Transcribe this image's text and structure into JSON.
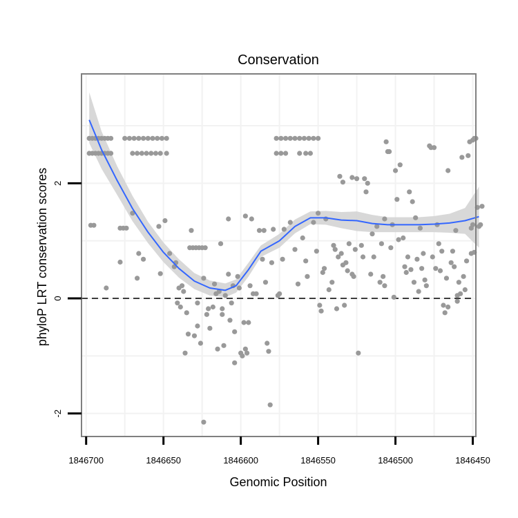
{
  "chart_data": {
    "type": "scatter",
    "title": "Conservation",
    "xlabel": "Genomic Position",
    "ylabel": "phyloP LRT conservation scores",
    "x_reversed": true,
    "xlim": [
      1846703,
      1846448
    ],
    "ylim": [
      -2.4,
      3.9
    ],
    "x_ticks": [
      1846700,
      1846650,
      1846600,
      1846550,
      1846500,
      1846450
    ],
    "x_tick_labels": [
      "1846700",
      "1846650",
      "1846600",
      "1846550",
      "1846500",
      "1846450"
    ],
    "y_ticks": [
      -2,
      0,
      2
    ],
    "y_tick_labels": [
      "-2",
      "0",
      "2"
    ],
    "reference_line": {
      "y": 0,
      "style": "dashed"
    },
    "grid": true,
    "colors": {
      "points": "#999999",
      "smooth_line": "#3366ff",
      "confidence_band": "#d4d4d4",
      "reference_line": "#000000",
      "panel_border": "#7f7f7f",
      "grid": "#f2f2f2"
    },
    "series": [
      {
        "name": "points",
        "points": [
          [
            1846698,
            2.78
          ],
          [
            1846696,
            2.78
          ],
          [
            1846694,
            2.78
          ],
          [
            1846692,
            2.78
          ],
          [
            1846690,
            2.78
          ],
          [
            1846688,
            2.78
          ],
          [
            1846686,
            2.78
          ],
          [
            1846684,
            2.78
          ],
          [
            1846698,
            2.52
          ],
          [
            1846696,
            2.52
          ],
          [
            1846694,
            2.52
          ],
          [
            1846692,
            2.52
          ],
          [
            1846690,
            2.52
          ],
          [
            1846688,
            2.52
          ],
          [
            1846686,
            2.52
          ],
          [
            1846684,
            2.52
          ],
          [
            1846675,
            2.78
          ],
          [
            1846672,
            2.78
          ],
          [
            1846669,
            2.78
          ],
          [
            1846666,
            2.78
          ],
          [
            1846663,
            2.78
          ],
          [
            1846660,
            2.78
          ],
          [
            1846657,
            2.78
          ],
          [
            1846654,
            2.78
          ],
          [
            1846651,
            2.78
          ],
          [
            1846648,
            2.78
          ],
          [
            1846670,
            2.52
          ],
          [
            1846667,
            2.52
          ],
          [
            1846664,
            2.52
          ],
          [
            1846661,
            2.52
          ],
          [
            1846658,
            2.52
          ],
          [
            1846655,
            2.52
          ],
          [
            1846652,
            2.52
          ],
          [
            1846648,
            2.52
          ],
          [
            1846577,
            2.78
          ],
          [
            1846574,
            2.78
          ],
          [
            1846571,
            2.78
          ],
          [
            1846568,
            2.78
          ],
          [
            1846565,
            2.78
          ],
          [
            1846562,
            2.78
          ],
          [
            1846559,
            2.78
          ],
          [
            1846556,
            2.78
          ],
          [
            1846553,
            2.78
          ],
          [
            1846550,
            2.78
          ],
          [
            1846577,
            2.52
          ],
          [
            1846574,
            2.52
          ],
          [
            1846571,
            2.52
          ],
          [
            1846562,
            2.52
          ],
          [
            1846558,
            2.52
          ],
          [
            1846555,
            2.52
          ],
          [
            1846697,
            1.27
          ],
          [
            1846695,
            1.27
          ],
          [
            1846687,
            0.18
          ],
          [
            1846678,
            1.22
          ],
          [
            1846676,
            1.22
          ],
          [
            1846674,
            1.22
          ],
          [
            1846678,
            0.63
          ],
          [
            1846670,
            1.48
          ],
          [
            1846667,
            0.35
          ],
          [
            1846666,
            0.78
          ],
          [
            1846663,
            0.68
          ],
          [
            1846653,
            1.25
          ],
          [
            1846652,
            0.43
          ],
          [
            1846649,
            1.35
          ],
          [
            1846646,
            0.78
          ],
          [
            1846643,
            0.55
          ],
          [
            1846642,
            0.62
          ],
          [
            1846640,
            0.18
          ],
          [
            1846641,
            -0.08
          ],
          [
            1846639,
            -0.15
          ],
          [
            1846638,
            0.22
          ],
          [
            1846637,
            0.12
          ],
          [
            1846635,
            -0.25
          ],
          [
            1846634,
            -0.62
          ],
          [
            1846636,
            -0.95
          ],
          [
            1846633,
            0.88
          ],
          [
            1846631,
            0.88
          ],
          [
            1846629,
            0.88
          ],
          [
            1846627,
            0.88
          ],
          [
            1846625,
            0.88
          ],
          [
            1846623,
            0.88
          ],
          [
            1846632,
            1.18
          ],
          [
            1846630,
            -0.65
          ],
          [
            1846628,
            -0.48
          ],
          [
            1846628,
            -0.08
          ],
          [
            1846626,
            -0.78
          ],
          [
            1846624,
            0.35
          ],
          [
            1846622,
            -0.28
          ],
          [
            1846621,
            -0.18
          ],
          [
            1846624,
            -2.15
          ],
          [
            1846620,
            -0.52
          ],
          [
            1846618,
            -0.15
          ],
          [
            1846617,
            0.25
          ],
          [
            1846616,
            0.08
          ],
          [
            1846615,
            -0.88
          ],
          [
            1846614,
            0.12
          ],
          [
            1846613,
            0.95
          ],
          [
            1846612,
            -0.18
          ],
          [
            1846612,
            -0.28
          ],
          [
            1846611,
            -0.82
          ],
          [
            1846610,
            0.05
          ],
          [
            1846608,
            0.42
          ],
          [
            1846608,
            1.38
          ],
          [
            1846607,
            -0.38
          ],
          [
            1846606,
            -0.08
          ],
          [
            1846605,
            0.22
          ],
          [
            1846604,
            -1.12
          ],
          [
            1846604,
            -0.58
          ],
          [
            1846602,
            0.38
          ],
          [
            1846601,
            0.18
          ],
          [
            1846600,
            -0.95
          ],
          [
            1846599,
            -1.0
          ],
          [
            1846598,
            -0.42
          ],
          [
            1846597,
            1.43
          ],
          [
            1846597,
            -0.88
          ],
          [
            1846596,
            -0.95
          ],
          [
            1846595,
            -0.42
          ],
          [
            1846594,
            0.22
          ],
          [
            1846593,
            1.38
          ],
          [
            1846592,
            0.08
          ],
          [
            1846590,
            0.08
          ],
          [
            1846588,
            1.18
          ],
          [
            1846586,
            0.68
          ],
          [
            1846585,
            1.18
          ],
          [
            1846584,
            0.28
          ],
          [
            1846583,
            -0.78
          ],
          [
            1846582,
            -0.92
          ],
          [
            1846581,
            -1.85
          ],
          [
            1846580,
            0.62
          ],
          [
            1846579,
            1.2
          ],
          [
            1846576,
            0.05
          ],
          [
            1846575,
            0.08
          ],
          [
            1846573,
            0.68
          ],
          [
            1846572,
            1.2
          ],
          [
            1846568,
            1.32
          ],
          [
            1846565,
            0.85
          ],
          [
            1846563,
            0.25
          ],
          [
            1846560,
            1.05
          ],
          [
            1846558,
            0.65
          ],
          [
            1846557,
            0.38
          ],
          [
            1846553,
            1.32
          ],
          [
            1846551,
            0.82
          ],
          [
            1846550,
            1.48
          ],
          [
            1846549,
            -0.12
          ],
          [
            1846548,
            -0.22
          ],
          [
            1846547,
            0.45
          ],
          [
            1846546,
            0.52
          ],
          [
            1846545,
            1.38
          ],
          [
            1846543,
            0.15
          ],
          [
            1846541,
            0.28
          ],
          [
            1846540,
            0.92
          ],
          [
            1846539,
            0.85
          ],
          [
            1846538,
            -0.18
          ],
          [
            1846537,
            0.72
          ],
          [
            1846536,
            2.12
          ],
          [
            1846535,
            0.78
          ],
          [
            1846534,
            0.58
          ],
          [
            1846534,
            2.02
          ],
          [
            1846533,
            -0.12
          ],
          [
            1846532,
            0.62
          ],
          [
            1846531,
            0.48
          ],
          [
            1846530,
            0.95
          ],
          [
            1846528,
            2.1
          ],
          [
            1846528,
            0.42
          ],
          [
            1846527,
            0.38
          ],
          [
            1846526,
            0.85
          ],
          [
            1846525,
            2.08
          ],
          [
            1846524,
            -0.95
          ],
          [
            1846522,
            0.92
          ],
          [
            1846521,
            0.72
          ],
          [
            1846520,
            2.08
          ],
          [
            1846519,
            1.85
          ],
          [
            1846518,
            2.0
          ],
          [
            1846516,
            0.42
          ],
          [
            1846515,
            1.12
          ],
          [
            1846514,
            0.72
          ],
          [
            1846512,
            1.25
          ],
          [
            1846510,
            0.28
          ],
          [
            1846509,
            0.95
          ],
          [
            1846508,
            0.38
          ],
          [
            1846507,
            0.22
          ],
          [
            1846507,
            1.38
          ],
          [
            1846506,
            2.72
          ],
          [
            1846505,
            2.55
          ],
          [
            1846504,
            2.55
          ],
          [
            1846503,
            0.88
          ],
          [
            1846502,
            1.28
          ],
          [
            1846501,
            0.02
          ],
          [
            1846500,
            2.22
          ],
          [
            1846499,
            1.72
          ],
          [
            1846498,
            1.02
          ],
          [
            1846497,
            2.32
          ],
          [
            1846495,
            1.05
          ],
          [
            1846494,
            0.55
          ],
          [
            1846493,
            0.45
          ],
          [
            1846492,
            0.72
          ],
          [
            1846491,
            1.85
          ],
          [
            1846490,
            0.5
          ],
          [
            1846489,
            1.68
          ],
          [
            1846488,
            0.28
          ],
          [
            1846487,
            1.4
          ],
          [
            1846486,
            0.68
          ],
          [
            1846485,
            0.12
          ],
          [
            1846484,
            1.22
          ],
          [
            1846483,
            0.52
          ],
          [
            1846482,
            0.78
          ],
          [
            1846481,
            0.32
          ],
          [
            1846480,
            0.22
          ],
          [
            1846478,
            2.65
          ],
          [
            1846477,
            2.62
          ],
          [
            1846476,
            0.72
          ],
          [
            1846475,
            2.62
          ],
          [
            1846474,
            0.52
          ],
          [
            1846473,
            1.28
          ],
          [
            1846472,
            0.95
          ],
          [
            1846471,
            0.48
          ],
          [
            1846470,
            0.82
          ],
          [
            1846469,
            -0.12
          ],
          [
            1846468,
            -0.25
          ],
          [
            1846467,
            0.35
          ],
          [
            1846466,
            -0.15
          ],
          [
            1846466,
            2.22
          ],
          [
            1846464,
            0.62
          ],
          [
            1846463,
            0.82
          ],
          [
            1846462,
            0.55
          ],
          [
            1846461,
            1.18
          ],
          [
            1846460,
            -0.05
          ],
          [
            1846460,
            0.05
          ],
          [
            1846459,
            0.28
          ],
          [
            1846458,
            0.08
          ],
          [
            1846457,
            2.45
          ],
          [
            1846456,
            0.38
          ],
          [
            1846455,
            0.15
          ],
          [
            1846454,
            0.65
          ],
          [
            1846453,
            2.48
          ],
          [
            1846452,
            2.72
          ],
          [
            1846451,
            0.78
          ],
          [
            1846450,
            2.75
          ],
          [
            1846450,
            1.28
          ],
          [
            1846449,
            2.78
          ],
          [
            1846448,
            2.78
          ],
          [
            1846447,
            1.58
          ],
          [
            1846451,
            1.22
          ],
          [
            1846449,
            0.8
          ],
          [
            1846446,
            1.25
          ],
          [
            1846445,
            1.28
          ],
          [
            1846444,
            1.6
          ]
        ]
      },
      {
        "name": "smooth fit",
        "points": [
          [
            1846698,
            3.1
          ],
          [
            1846690,
            2.58
          ],
          [
            1846680,
            2.05
          ],
          [
            1846670,
            1.56
          ],
          [
            1846660,
            1.15
          ],
          [
            1846650,
            0.8
          ],
          [
            1846640,
            0.52
          ],
          [
            1846630,
            0.3
          ],
          [
            1846620,
            0.18
          ],
          [
            1846610,
            0.14
          ],
          [
            1846603,
            0.22
          ],
          [
            1846595,
            0.5
          ],
          [
            1846587,
            0.82
          ],
          [
            1846575,
            1.0
          ],
          [
            1846565,
            1.25
          ],
          [
            1846555,
            1.4
          ],
          [
            1846545,
            1.4
          ],
          [
            1846535,
            1.36
          ],
          [
            1846525,
            1.35
          ],
          [
            1846515,
            1.3
          ],
          [
            1846505,
            1.28
          ],
          [
            1846495,
            1.28
          ],
          [
            1846485,
            1.28
          ],
          [
            1846475,
            1.29
          ],
          [
            1846465,
            1.31
          ],
          [
            1846455,
            1.35
          ],
          [
            1846446,
            1.42
          ]
        ],
        "upper": [
          3.58,
          2.9,
          2.3,
          1.78,
          1.33,
          0.97,
          0.68,
          0.44,
          0.31,
          0.26,
          0.33,
          0.62,
          0.92,
          1.12,
          1.37,
          1.51,
          1.52,
          1.5,
          1.51,
          1.45,
          1.41,
          1.41,
          1.41,
          1.43,
          1.47,
          1.57,
          1.94
        ],
        "lower": [
          2.7,
          2.25,
          1.8,
          1.34,
          0.96,
          0.63,
          0.36,
          0.16,
          0.05,
          0.02,
          0.1,
          0.38,
          0.72,
          0.88,
          1.13,
          1.29,
          1.28,
          1.22,
          1.17,
          1.15,
          1.15,
          1.15,
          1.15,
          1.15,
          1.14,
          1.12,
          0.88
        ]
      }
    ]
  }
}
